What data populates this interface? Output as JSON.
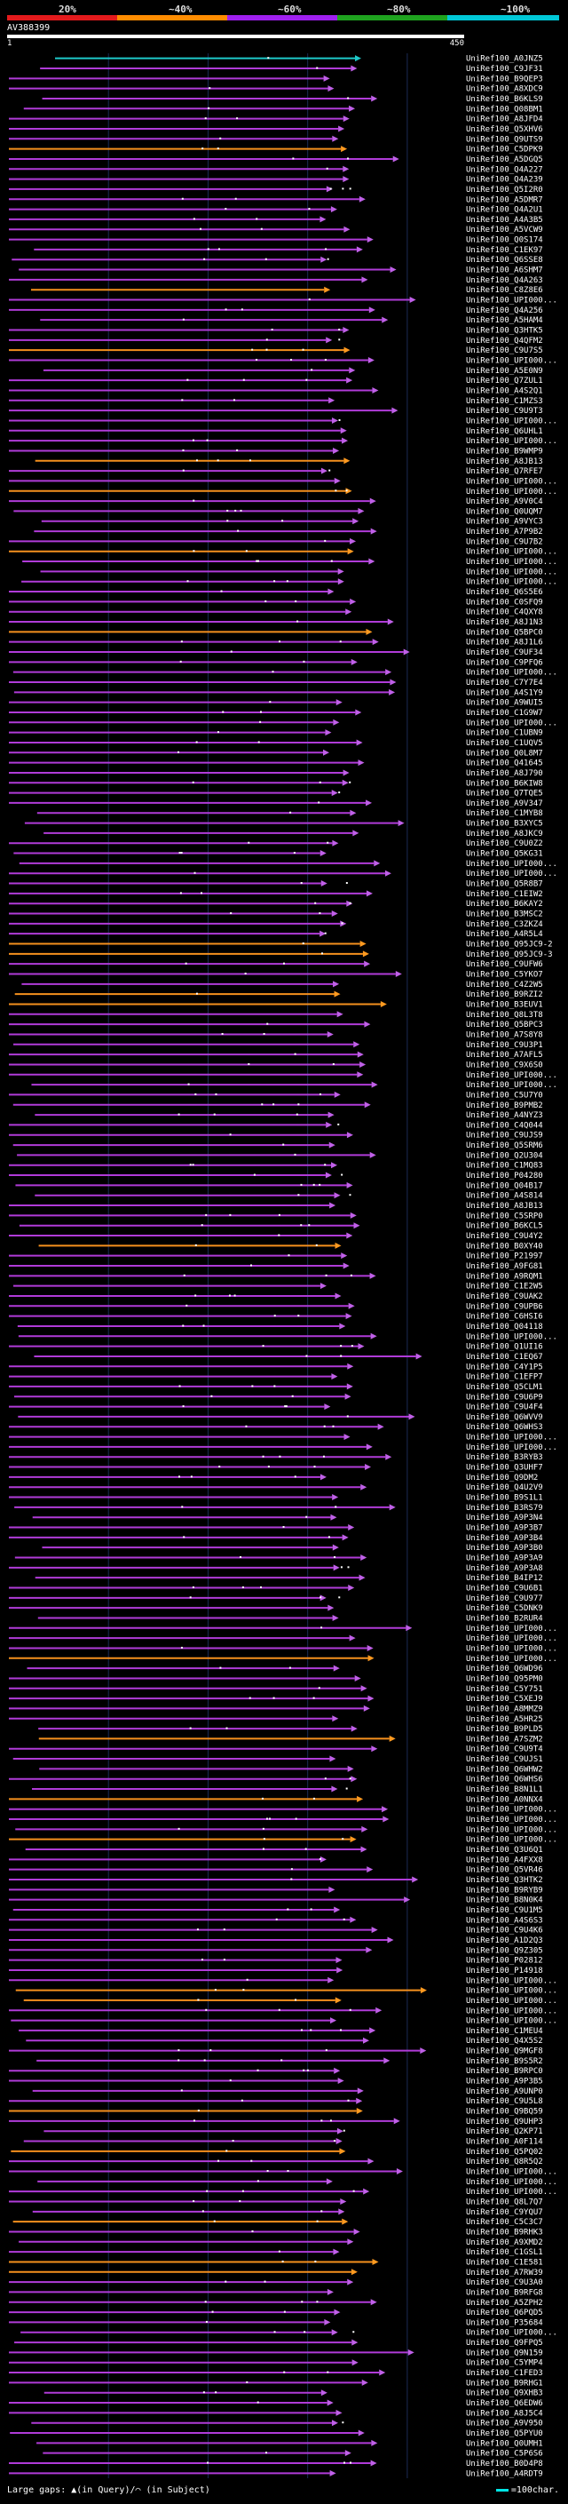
{
  "header": {
    "legend": [
      {
        "label": "20%",
        "color": "#e31a1c"
      },
      {
        "label": "~40%",
        "color": "#ff8c00"
      },
      {
        "label": "~60%",
        "color": "#a020f0"
      },
      {
        "label": "~80%",
        "color": "#1fa31f"
      },
      {
        "label": "~100%",
        "color": "#00c8d7"
      }
    ],
    "query_id": "AV388399",
    "ruler_start": "1",
    "ruler_end": "450"
  },
  "colors": {
    "purple": "#b03bd8",
    "orange": "#f5901e",
    "cyan": "#1ec9c9",
    "arrow_purple": "#c060e8",
    "arrow_orange": "#ff9a20",
    "grid": "#1a2a55",
    "dot": "#ffffff"
  },
  "hits": [
    {
      "label": "UniRef100_A0JNZ5",
      "color": "cyan"
    },
    {
      "label": "UniRef100_C9JF31",
      "color": "purple"
    },
    {
      "label": "UniRef100_B9QEP3",
      "color": "purple"
    },
    {
      "label": "UniRef100_A8XDC9",
      "color": "purple"
    },
    {
      "label": "UniRef100_B6KLS9",
      "color": "purple"
    },
    {
      "label": "UniRef100_Q08BM1",
      "color": "purple"
    },
    {
      "label": "UniRef100_A8JFD4",
      "color": "purple"
    },
    {
      "label": "UniRef100_Q5XHV6",
      "color": "purple"
    },
    {
      "label": "UniRef100_Q9UTS9",
      "color": "purple"
    },
    {
      "label": "UniRef100_C5DPK9",
      "color": "orange"
    },
    {
      "label": "UniRef100_A5DGQ5",
      "color": "purple"
    },
    {
      "label": "UniRef100_Q4A227",
      "color": "purple"
    },
    {
      "label": "UniRef100_Q4A239",
      "color": "purple"
    },
    {
      "label": "UniRef100_Q5I2R0",
      "color": "purple"
    },
    {
      "label": "UniRef100_A5DMR7",
      "color": "purple"
    },
    {
      "label": "UniRef100_Q4A2U1",
      "color": "purple"
    },
    {
      "label": "UniRef100_A4A3B5",
      "color": "purple"
    },
    {
      "label": "UniRef100_A5VCW9",
      "color": "purple"
    },
    {
      "label": "UniRef100_Q0S174",
      "color": "purple"
    },
    {
      "label": "UniRef100_C1EK97",
      "color": "purple"
    },
    {
      "label": "UniRef100_Q6SSE8",
      "color": "purple"
    },
    {
      "label": "UniRef100_A6SHM7",
      "color": "purple"
    },
    {
      "label": "UniRef100_Q4A263",
      "color": "purple"
    },
    {
      "label": "UniRef100_C8Z8E6",
      "color": "orange"
    },
    {
      "label": "UniRef100_UPI000...",
      "color": "purple"
    },
    {
      "label": "UniRef100_Q4A256",
      "color": "purple"
    },
    {
      "label": "UniRef100_A5HAM4",
      "color": "purple"
    },
    {
      "label": "UniRef100_Q3HTK5",
      "color": "purple"
    },
    {
      "label": "UniRef100_Q4QFM2",
      "color": "purple"
    },
    {
      "label": "UniRef100_C9U7S5",
      "color": "orange"
    },
    {
      "label": "UniRef100_UPI000...",
      "color": "purple"
    },
    {
      "label": "UniRef100_A5E0N9",
      "color": "purple"
    },
    {
      "label": "UniRef100_Q7ZUL1",
      "color": "purple"
    },
    {
      "label": "UniRef100_A4S2Q1",
      "color": "purple"
    },
    {
      "label": "UniRef100_C1MZS3",
      "color": "purple"
    },
    {
      "label": "UniRef100_C9U9T3",
      "color": "purple"
    },
    {
      "label": "UniRef100_UPI000...",
      "color": "purple"
    },
    {
      "label": "UniRef100_Q6UHL1",
      "color": "purple"
    },
    {
      "label": "UniRef100_UPI000...",
      "color": "purple"
    },
    {
      "label": "UniRef100_B9WMP9",
      "color": "purple"
    },
    {
      "label": "UniRef100_A8JB13",
      "color": "orange"
    },
    {
      "label": "UniRef100_Q7RFE7",
      "color": "purple"
    },
    {
      "label": "UniRef100_UPI000...",
      "color": "purple"
    },
    {
      "label": "UniRef100_UPI000...",
      "color": "orange"
    },
    {
      "label": "UniRef100_A9V0C4",
      "color": "purple"
    },
    {
      "label": "UniRef100_Q0UQM7",
      "color": "purple"
    },
    {
      "label": "UniRef100_A9VYC3",
      "color": "purple"
    },
    {
      "label": "UniRef100_A7P9B2",
      "color": "purple"
    },
    {
      "label": "UniRef100_C9U7B2",
      "color": "purple"
    },
    {
      "label": "UniRef100_UPI000...",
      "color": "orange"
    },
    {
      "label": "UniRef100_UPI000...",
      "color": "purple"
    },
    {
      "label": "UniRef100_UPI000...",
      "color": "purple"
    },
    {
      "label": "UniRef100_UPI000...",
      "color": "purple"
    },
    {
      "label": "UniRef100_Q6S5E6",
      "color": "purple"
    },
    {
      "label": "UniRef100_C0SFQ9",
      "color": "purple"
    },
    {
      "label": "UniRef100_C4QXY8",
      "color": "purple"
    },
    {
      "label": "UniRef100_A8J1N3",
      "color": "purple"
    },
    {
      "label": "UniRef100_Q5BPC0",
      "color": "orange"
    },
    {
      "label": "UniRef100_A8J1L6",
      "color": "purple"
    },
    {
      "label": "UniRef100_C9UF34",
      "color": "purple"
    },
    {
      "label": "UniRef100_C9PFQ6",
      "color": "purple"
    },
    {
      "label": "UniRef100_UPI000...",
      "color": "purple"
    },
    {
      "label": "UniRef100_C7Y7E4",
      "color": "purple"
    },
    {
      "label": "UniRef100_A4S1Y9",
      "color": "purple"
    },
    {
      "label": "UniRef100_A9WUI5",
      "color": "purple"
    },
    {
      "label": "UniRef100_C1G9W7",
      "color": "purple"
    },
    {
      "label": "UniRef100_UPI000...",
      "color": "purple"
    },
    {
      "label": "UniRef100_C1UBN9",
      "color": "purple"
    },
    {
      "label": "UniRef100_C1UQV5",
      "color": "purple"
    },
    {
      "label": "UniRef100_Q0L8M7",
      "color": "purple"
    },
    {
      "label": "UniRef100_Q41645",
      "color": "purple"
    },
    {
      "label": "UniRef100_A8J790",
      "color": "purple"
    },
    {
      "label": "UniRef100_B6KIW8",
      "color": "purple"
    },
    {
      "label": "UniRef100_Q7TQE5",
      "color": "purple"
    },
    {
      "label": "UniRef100_A9V347",
      "color": "purple"
    },
    {
      "label": "UniRef100_C1MYB8",
      "color": "purple"
    },
    {
      "label": "UniRef100_B3XYC5",
      "color": "purple"
    },
    {
      "label": "UniRef100_A8JKC9",
      "color": "purple"
    },
    {
      "label": "UniRef100_C9U0Z2",
      "color": "purple"
    },
    {
      "label": "UniRef100_Q5KG31",
      "color": "purple"
    },
    {
      "label": "UniRef100_UPI000...",
      "color": "purple"
    },
    {
      "label": "UniRef100_UPI000...",
      "color": "purple"
    },
    {
      "label": "UniRef100_Q5R8B7",
      "color": "purple"
    },
    {
      "label": "UniRef100_C1EIW2",
      "color": "purple"
    },
    {
      "label": "UniRef100_B6KAY2",
      "color": "purple"
    },
    {
      "label": "UniRef100_B3MSC2",
      "color": "purple"
    },
    {
      "label": "UniRef100_C3ZKZ4",
      "color": "purple"
    },
    {
      "label": "UniRef100_A4R5L4",
      "color": "purple"
    },
    {
      "label": "UniRef100_Q95JC9-2",
      "color": "orange"
    },
    {
      "label": "UniRef100_Q95JC9-3",
      "color": "orange"
    },
    {
      "label": "UniRef100_C9UFW6",
      "color": "purple"
    },
    {
      "label": "UniRef100_C5YKO7",
      "color": "purple"
    },
    {
      "label": "UniRef100_C4Z2W5",
      "color": "purple"
    },
    {
      "label": "UniRef100_B9RZI2",
      "color": "orange"
    },
    {
      "label": "UniRef100_B3EUV1",
      "color": "orange"
    },
    {
      "label": "UniRef100_Q8L3T8",
      "color": "purple"
    },
    {
      "label": "UniRef100_Q5BPC3",
      "color": "purple"
    },
    {
      "label": "UniRef100_A7S8Y8",
      "color": "purple"
    },
    {
      "label": "UniRef100_C9U3P1",
      "color": "purple"
    },
    {
      "label": "UniRef100_A7AFL5",
      "color": "purple"
    },
    {
      "label": "UniRef100_C9X6S0",
      "color": "purple"
    },
    {
      "label": "UniRef100_UPI000...",
      "color": "purple"
    },
    {
      "label": "UniRef100_UPI000...",
      "color": "purple"
    },
    {
      "label": "UniRef100_C5U7Y0",
      "color": "purple"
    },
    {
      "label": "UniRef100_B9PMB2",
      "color": "purple"
    },
    {
      "label": "UniRef100_A4NYZ3",
      "color": "purple"
    },
    {
      "label": "UniRef100_C4Q044",
      "color": "purple"
    },
    {
      "label": "UniRef100_C9UJS9",
      "color": "purple"
    },
    {
      "label": "UniRef100_Q5SRM6",
      "color": "purple"
    },
    {
      "label": "UniRef100_Q2U304",
      "color": "purple"
    },
    {
      "label": "UniRef100_C1MQ83",
      "color": "purple"
    },
    {
      "label": "UniRef100_P04280",
      "color": "purple"
    },
    {
      "label": "UniRef100_Q04B17",
      "color": "purple"
    },
    {
      "label": "UniRef100_A4S814",
      "color": "purple"
    },
    {
      "label": "UniRef100_A8JB13",
      "color": "purple"
    },
    {
      "label": "UniRef100_C5SRP0",
      "color": "purple"
    },
    {
      "label": "UniRef100_B6KCL5",
      "color": "purple"
    },
    {
      "label": "UniRef100_C9U4Y2",
      "color": "purple"
    },
    {
      "label": "UniRef100_B0XY40",
      "color": "orange"
    },
    {
      "label": "UniRef100_P21997",
      "color": "purple"
    },
    {
      "label": "UniRef100_A9FG81",
      "color": "purple"
    },
    {
      "label": "UniRef100_A9RQM1",
      "color": "purple"
    },
    {
      "label": "UniRef100_C1E2W5",
      "color": "purple"
    },
    {
      "label": "UniRef100_C9UAK2",
      "color": "purple"
    },
    {
      "label": "UniRef100_C9UPB6",
      "color": "purple"
    },
    {
      "label": "UniRef100_C6HSI6",
      "color": "purple"
    },
    {
      "label": "UniRef100_Q04118",
      "color": "purple"
    },
    {
      "label": "UniRef100_UPI000...",
      "color": "purple"
    },
    {
      "label": "UniRef100_Q1UI16",
      "color": "purple"
    },
    {
      "label": "UniRef100_C1EQ67",
      "color": "purple"
    },
    {
      "label": "UniRef100_C4Y1P5",
      "color": "purple"
    },
    {
      "label": "UniRef100_C1EFP7",
      "color": "purple"
    },
    {
      "label": "UniRef100_Q5CLM1",
      "color": "purple"
    },
    {
      "label": "UniRef100_C9U6P9",
      "color": "purple"
    },
    {
      "label": "UniRef100_C9U4F4",
      "color": "purple"
    },
    {
      "label": "UniRef100_Q6WVV9",
      "color": "purple"
    },
    {
      "label": "UniRef100_Q6WHS3",
      "color": "purple"
    },
    {
      "label": "UniRef100_UPI000...",
      "color": "purple"
    },
    {
      "label": "UniRef100_UPI000...",
      "color": "purple"
    },
    {
      "label": "UniRef100_B3RYB3",
      "color": "purple"
    },
    {
      "label": "UniRef100_Q3UHF7",
      "color": "purple"
    },
    {
      "label": "UniRef100_Q9DM2",
      "color": "purple"
    },
    {
      "label": "UniRef100_Q4U2V9",
      "color": "purple"
    },
    {
      "label": "UniRef100_B9S1L1",
      "color": "purple"
    },
    {
      "label": "UniRef100_B3RS79",
      "color": "purple"
    },
    {
      "label": "UniRef100_A9P3N4",
      "color": "purple"
    },
    {
      "label": "UniRef100_A9P3B7",
      "color": "purple"
    },
    {
      "label": "UniRef100_A9P3B4",
      "color": "purple"
    },
    {
      "label": "UniRef100_A9P3B0",
      "color": "purple"
    },
    {
      "label": "UniRef100_A9P3A9",
      "color": "purple"
    },
    {
      "label": "UniRef100_A9P3A8",
      "color": "purple"
    },
    {
      "label": "UniRef100_B4IP12",
      "color": "purple"
    },
    {
      "label": "UniRef100_C9U6B1",
      "color": "purple"
    },
    {
      "label": "UniRef100_C9U977",
      "color": "purple"
    },
    {
      "label": "UniRef100_C5DNK9",
      "color": "purple"
    },
    {
      "label": "UniRef100_B2RUR4",
      "color": "purple"
    },
    {
      "label": "UniRef100_UPI000...",
      "color": "purple"
    },
    {
      "label": "UniRef100_UPI000...",
      "color": "purple"
    },
    {
      "label": "UniRef100_UPI000...",
      "color": "purple"
    },
    {
      "label": "UniRef100_UPI000...",
      "color": "orange"
    },
    {
      "label": "UniRef100_Q6WD96",
      "color": "purple"
    },
    {
      "label": "UniRef100_Q95PM0",
      "color": "purple"
    },
    {
      "label": "UniRef100_C5Y751",
      "color": "purple"
    },
    {
      "label": "UniRef100_C5XEJ9",
      "color": "purple"
    },
    {
      "label": "UniRef100_A8MMZ9",
      "color": "purple"
    },
    {
      "label": "UniRef100_A5HR25",
      "color": "purple"
    },
    {
      "label": "UniRef100_B9PLD5",
      "color": "purple"
    },
    {
      "label": "UniRef100_A7SZM2",
      "color": "orange"
    },
    {
      "label": "UniRef100_C9U9T4",
      "color": "purple"
    },
    {
      "label": "UniRef100_C9UJS1",
      "color": "purple"
    },
    {
      "label": "UniRef100_Q6WHW2",
      "color": "purple"
    },
    {
      "label": "UniRef100_Q6WHS6",
      "color": "purple"
    },
    {
      "label": "UniRef100_B8N1L1",
      "color": "purple"
    },
    {
      "label": "UniRef100_A0NNX4",
      "color": "orange"
    },
    {
      "label": "UniRef100_UPI000...",
      "color": "purple"
    },
    {
      "label": "UniRef100_UPI000...",
      "color": "purple"
    },
    {
      "label": "UniRef100_UPI000...",
      "color": "purple"
    },
    {
      "label": "UniRef100_UPI000...",
      "color": "orange"
    },
    {
      "label": "UniRef100_Q3U6Q1",
      "color": "purple"
    },
    {
      "label": "UniRef100_A4FXX8",
      "color": "purple"
    },
    {
      "label": "UniRef100_Q5VR46",
      "color": "purple"
    },
    {
      "label": "UniRef100_Q3HTK2",
      "color": "purple"
    },
    {
      "label": "UniRef100_B9RYB9",
      "color": "purple"
    },
    {
      "label": "UniRef100_B8N0K4",
      "color": "purple"
    },
    {
      "label": "UniRef100_C9U1M5",
      "color": "purple"
    },
    {
      "label": "UniRef100_A4S6S3",
      "color": "purple"
    },
    {
      "label": "UniRef100_C9U4K6",
      "color": "purple"
    },
    {
      "label": "UniRef100_A1D2Q3",
      "color": "purple"
    },
    {
      "label": "UniRef100_Q9Z305",
      "color": "purple"
    },
    {
      "label": "UniRef100_P02812",
      "color": "purple"
    },
    {
      "label": "UniRef100_P14918",
      "color": "purple"
    },
    {
      "label": "UniRef100_UPI000...",
      "color": "purple"
    },
    {
      "label": "UniRef100_UPI000...",
      "color": "orange"
    },
    {
      "label": "UniRef100_UPI000...",
      "color": "orange"
    },
    {
      "label": "UniRef100_UPI000...",
      "color": "purple"
    },
    {
      "label": "UniRef100_UPI000...",
      "color": "purple"
    },
    {
      "label": "UniRef100_C1MEU4",
      "color": "purple"
    },
    {
      "label": "UniRef100_Q4X5S2",
      "color": "purple"
    },
    {
      "label": "UniRef100_Q9MGF8",
      "color": "purple"
    },
    {
      "label": "UniRef100_B9S5R2",
      "color": "purple"
    },
    {
      "label": "UniRef100_B9RPC0",
      "color": "purple"
    },
    {
      "label": "UniRef100_A9P3B5",
      "color": "purple"
    },
    {
      "label": "UniRef100_A9UNP0",
      "color": "purple"
    },
    {
      "label": "UniRef100_C9U5L8",
      "color": "purple"
    },
    {
      "label": "UniRef100_Q9BQ59",
      "color": "orange"
    },
    {
      "label": "UniRef100_Q9UHP3",
      "color": "purple"
    },
    {
      "label": "UniRef100_Q2KP71",
      "color": "purple"
    },
    {
      "label": "UniRef100_A0F114",
      "color": "purple"
    },
    {
      "label": "UniRef100_Q5PQ02",
      "color": "orange"
    },
    {
      "label": "UniRef100_Q8R5Q2",
      "color": "purple"
    },
    {
      "label": "UniRef100_UPI000...",
      "color": "purple"
    },
    {
      "label": "UniRef100_UPI000...",
      "color": "purple"
    },
    {
      "label": "UniRef100_UPI000...",
      "color": "purple"
    },
    {
      "label": "UniRef100_Q8L7Q7",
      "color": "purple"
    },
    {
      "label": "UniRef100_C9YQU7",
      "color": "purple"
    },
    {
      "label": "UniRef100_C5C3C7",
      "color": "orange"
    },
    {
      "label": "UniRef100_B9RHK3",
      "color": "purple"
    },
    {
      "label": "UniRef100_A9XMD2",
      "color": "purple"
    },
    {
      "label": "UniRef100_C1GSL1",
      "color": "purple"
    },
    {
      "label": "UniRef100_C1E581",
      "color": "orange"
    },
    {
      "label": "UniRef100_A7RW39",
      "color": "orange"
    },
    {
      "label": "UniRef100_C9U3A0",
      "color": "purple"
    },
    {
      "label": "UniRef100_B9RFG8",
      "color": "purple"
    },
    {
      "label": "UniRef100_A5ZPH2",
      "color": "purple"
    },
    {
      "label": "UniRef100_Q6PQD5",
      "color": "purple"
    },
    {
      "label": "UniRef100_P35684",
      "color": "purple"
    },
    {
      "label": "UniRef100_UPI000...",
      "color": "purple"
    },
    {
      "label": "UniRef100_Q9FPQ5",
      "color": "purple"
    },
    {
      "label": "UniRef100_Q9N159",
      "color": "purple"
    },
    {
      "label": "UniRef100_C5YMP4",
      "color": "purple"
    },
    {
      "label": "UniRef100_C1FED3",
      "color": "purple"
    },
    {
      "label": "UniRef100_B9RHG1",
      "color": "purple"
    },
    {
      "label": "UniRef100_Q9XHB3",
      "color": "purple"
    },
    {
      "label": "UniRef100_Q6EDW6",
      "color": "purple"
    },
    {
      "label": "UniRef100_A8J5C4",
      "color": "purple"
    },
    {
      "label": "UniRef100_A9V950",
      "color": "purple"
    },
    {
      "label": "UniRef100_Q5PYU0",
      "color": "purple"
    },
    {
      "label": "UniRef100_Q0UMH1",
      "color": "purple"
    },
    {
      "label": "UniRef100_C5P6S6",
      "color": "purple"
    },
    {
      "label": "UniRef100_B0D4P8",
      "color": "purple"
    },
    {
      "label": "UniRef100_A4RDT9",
      "color": "purple"
    }
  ],
  "footer": {
    "text": "Large gaps: ▲(in Query)/⌒ (in Subject)",
    "scale": "=100char."
  }
}
